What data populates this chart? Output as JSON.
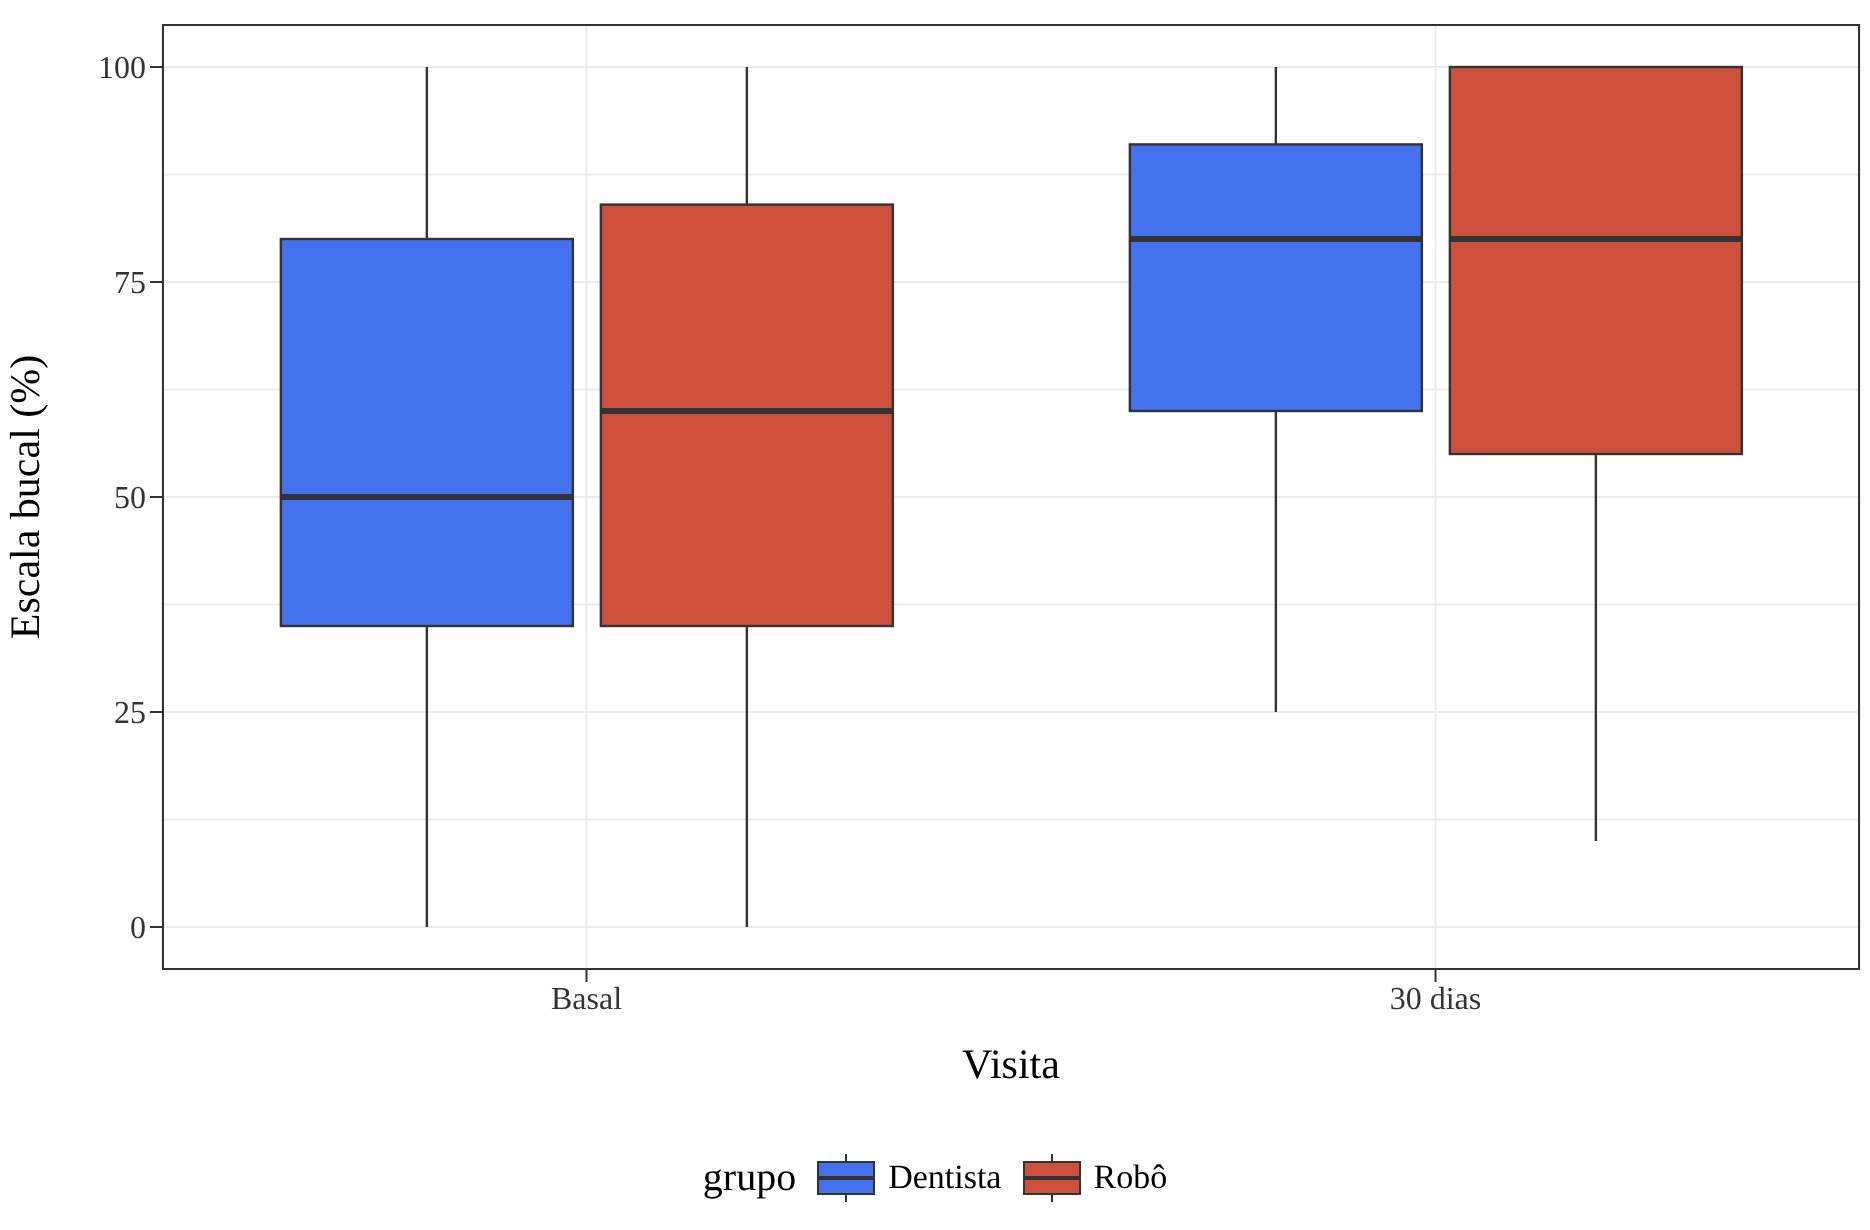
{
  "chart_data": {
    "type": "box",
    "xlabel": "Visita",
    "ylabel": "Escala bucal (%)",
    "legend_title": "grupo",
    "categories": [
      "Basal",
      "30 dias"
    ],
    "series": [
      {
        "name": "Dentista",
        "color": "#4472ee",
        "boxes": [
          {
            "low": 0,
            "q1": 35,
            "median": 50,
            "q3": 80,
            "high": 100
          },
          {
            "low": 25,
            "q1": 60,
            "median": 80,
            "q3": 91,
            "high": 100
          }
        ]
      },
      {
        "name": "Robô",
        "color": "#cd503d",
        "boxes": [
          {
            "low": 0,
            "q1": 35,
            "median": 60,
            "q3": 84,
            "high": 100
          },
          {
            "low": 10,
            "q1": 55,
            "median": 80,
            "q3": 100,
            "high": 100
          }
        ]
      }
    ],
    "ylim": [
      -5,
      105
    ],
    "yticks": [
      0,
      25,
      50,
      75,
      100
    ],
    "grid": true,
    "legend": "bottom"
  }
}
